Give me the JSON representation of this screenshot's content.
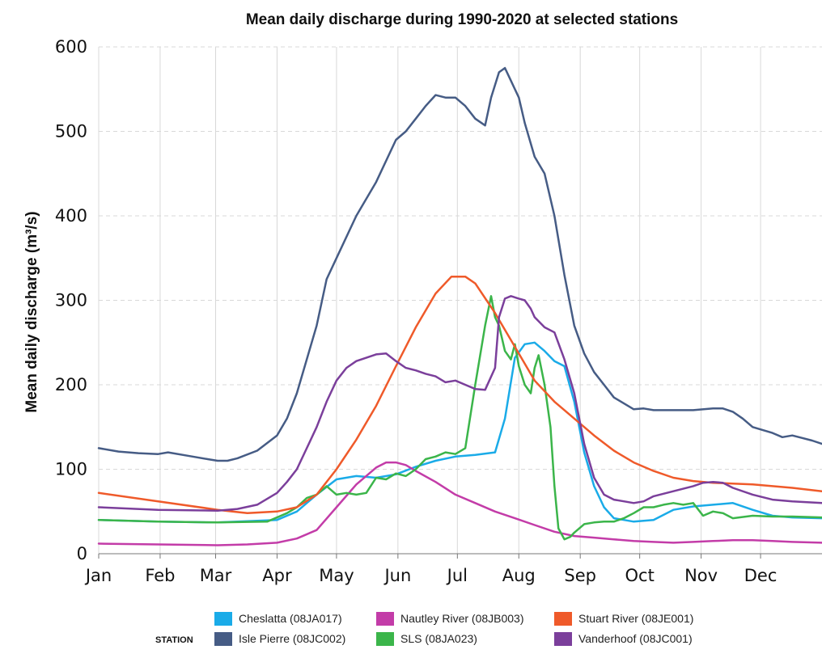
{
  "chart_data": {
    "type": "line",
    "title": "Mean daily discharge during 1990-2020 at selected stations",
    "xlabel": "",
    "ylabel": "Mean daily discharge (m³/s)",
    "xlim": [
      0,
      365
    ],
    "ylim": [
      0,
      600
    ],
    "yticks": [
      0,
      100,
      200,
      300,
      400,
      500,
      600
    ],
    "xticks": [
      {
        "label": "Jan",
        "x": 0
      },
      {
        "label": "Feb",
        "x": 31
      },
      {
        "label": "Mar",
        "x": 59
      },
      {
        "label": "Apr",
        "x": 90
      },
      {
        "label": "May",
        "x": 120
      },
      {
        "label": "Jun",
        "x": 151
      },
      {
        "label": "Jul",
        "x": 181
      },
      {
        "label": "Aug",
        "x": 212
      },
      {
        "label": "Sep",
        "x": 243
      },
      {
        "label": "Oct",
        "x": 273
      },
      {
        "label": "Nov",
        "x": 304
      },
      {
        "label": "Dec",
        "x": 334
      }
    ],
    "grid": true,
    "legend": {
      "title": "STATION",
      "placement": "bottom"
    },
    "series": [
      {
        "name": "Cheslatta (08JA017)",
        "color": "#1aabe8",
        "x": [
          0,
          30,
          60,
          90,
          100,
          110,
          120,
          130,
          140,
          150,
          160,
          170,
          180,
          190,
          200,
          205,
          210,
          215,
          220,
          225,
          230,
          235,
          240,
          245,
          250,
          255,
          260,
          265,
          270,
          280,
          290,
          300,
          310,
          320,
          330,
          340,
          350,
          365
        ],
        "y": [
          40,
          38,
          37,
          40,
          50,
          70,
          88,
          92,
          90,
          94,
          103,
          110,
          115,
          117,
          120,
          160,
          232,
          248,
          250,
          240,
          228,
          222,
          180,
          120,
          80,
          55,
          42,
          40,
          38,
          40,
          52,
          56,
          58,
          60,
          52,
          45,
          43,
          42
        ]
      },
      {
        "name": "Isle Pierre (08JC002)",
        "color": "#465c85",
        "x": [
          0,
          10,
          20,
          30,
          35,
          45,
          55,
          60,
          65,
          70,
          80,
          90,
          95,
          100,
          110,
          115,
          120,
          130,
          140,
          150,
          155,
          160,
          165,
          170,
          175,
          180,
          185,
          190,
          195,
          198,
          202,
          205,
          208,
          212,
          215,
          220,
          225,
          230,
          235,
          240,
          245,
          250,
          255,
          260,
          270,
          275,
          280,
          290,
          300,
          310,
          315,
          320,
          325,
          330,
          340,
          345,
          350,
          355,
          360,
          365
        ],
        "y": [
          125,
          121,
          119,
          118,
          120,
          116,
          112,
          110,
          110,
          113,
          122,
          140,
          160,
          190,
          270,
          325,
          350,
          400,
          440,
          490,
          500,
          515,
          530,
          543,
          540,
          540,
          530,
          515,
          507,
          540,
          570,
          575,
          560,
          540,
          510,
          470,
          450,
          400,
          330,
          270,
          237,
          215,
          200,
          185,
          171,
          172,
          170,
          170,
          170,
          172,
          172,
          168,
          160,
          150,
          143,
          138,
          140,
          137,
          134,
          130
        ]
      },
      {
        "name": "Nautley River (08JB003)",
        "color": "#c33ca8",
        "x": [
          0,
          30,
          60,
          75,
          90,
          100,
          110,
          120,
          130,
          140,
          145,
          150,
          155,
          160,
          170,
          180,
          190,
          200,
          210,
          220,
          230,
          240,
          250,
          260,
          270,
          280,
          290,
          300,
          310,
          320,
          330,
          340,
          350,
          365
        ],
        "y": [
          12,
          11,
          10,
          11,
          13,
          18,
          28,
          55,
          82,
          102,
          108,
          108,
          105,
          98,
          85,
          70,
          60,
          50,
          42,
          34,
          26,
          21,
          19,
          17,
          15,
          14,
          13,
          14,
          15,
          16,
          16,
          15,
          14,
          13
        ]
      },
      {
        "name": "SLS (08JA023)",
        "color": "#3bb54a",
        "x": [
          0,
          30,
          60,
          85,
          95,
          100,
          105,
          110,
          115,
          120,
          125,
          130,
          135,
          140,
          145,
          150,
          155,
          160,
          165,
          170,
          175,
          180,
          185,
          190,
          195,
          198,
          200,
          202,
          205,
          208,
          210,
          212,
          215,
          218,
          220,
          222,
          225,
          228,
          230,
          232,
          235,
          238,
          240,
          245,
          250,
          255,
          260,
          265,
          270,
          275,
          280,
          285,
          290,
          295,
          300,
          305,
          310,
          315,
          320,
          330,
          340,
          350,
          365
        ],
        "y": [
          40,
          38,
          37,
          38,
          48,
          55,
          66,
          70,
          80,
          70,
          72,
          70,
          72,
          90,
          88,
          95,
          92,
          100,
          112,
          115,
          120,
          118,
          125,
          200,
          270,
          305,
          280,
          270,
          240,
          230,
          248,
          222,
          200,
          190,
          220,
          235,
          200,
          150,
          80,
          30,
          17,
          20,
          25,
          35,
          37,
          38,
          38,
          42,
          48,
          55,
          55,
          58,
          60,
          58,
          60,
          45,
          50,
          48,
          42,
          45,
          44,
          44,
          43
        ]
      },
      {
        "name": "Stuart River (08JE001)",
        "color": "#ef5a2a",
        "x": [
          0,
          30,
          60,
          75,
          90,
          100,
          110,
          120,
          130,
          140,
          150,
          160,
          170,
          178,
          185,
          190,
          200,
          210,
          220,
          230,
          240,
          250,
          260,
          270,
          280,
          290,
          300,
          310,
          320,
          330,
          340,
          350,
          365
        ],
        "y": [
          72,
          62,
          52,
          48,
          50,
          55,
          70,
          100,
          135,
          175,
          222,
          268,
          308,
          328,
          328,
          320,
          285,
          245,
          205,
          180,
          160,
          140,
          122,
          108,
          98,
          90,
          86,
          84,
          83,
          82,
          80,
          78,
          74
        ]
      },
      {
        "name": "Vanderhoof (08JC001)",
        "color": "#7b3f9b",
        "x": [
          0,
          30,
          60,
          70,
          80,
          90,
          95,
          100,
          105,
          110,
          115,
          120,
          125,
          130,
          135,
          140,
          145,
          150,
          155,
          160,
          165,
          170,
          175,
          180,
          185,
          190,
          195,
          200,
          202,
          205,
          208,
          212,
          215,
          218,
          220,
          225,
          230,
          235,
          240,
          245,
          250,
          255,
          260,
          265,
          270,
          275,
          280,
          290,
          300,
          305,
          310,
          315,
          320,
          330,
          340,
          350,
          365
        ],
        "y": [
          55,
          52,
          51,
          53,
          58,
          72,
          85,
          100,
          125,
          150,
          180,
          205,
          220,
          228,
          232,
          236,
          237,
          228,
          220,
          217,
          213,
          210,
          203,
          205,
          200,
          195,
          194,
          220,
          280,
          302,
          305,
          302,
          300,
          290,
          280,
          268,
          262,
          230,
          190,
          130,
          90,
          70,
          64,
          62,
          60,
          62,
          68,
          74,
          80,
          84,
          85,
          84,
          78,
          70,
          64,
          62,
          60
        ]
      }
    ]
  }
}
